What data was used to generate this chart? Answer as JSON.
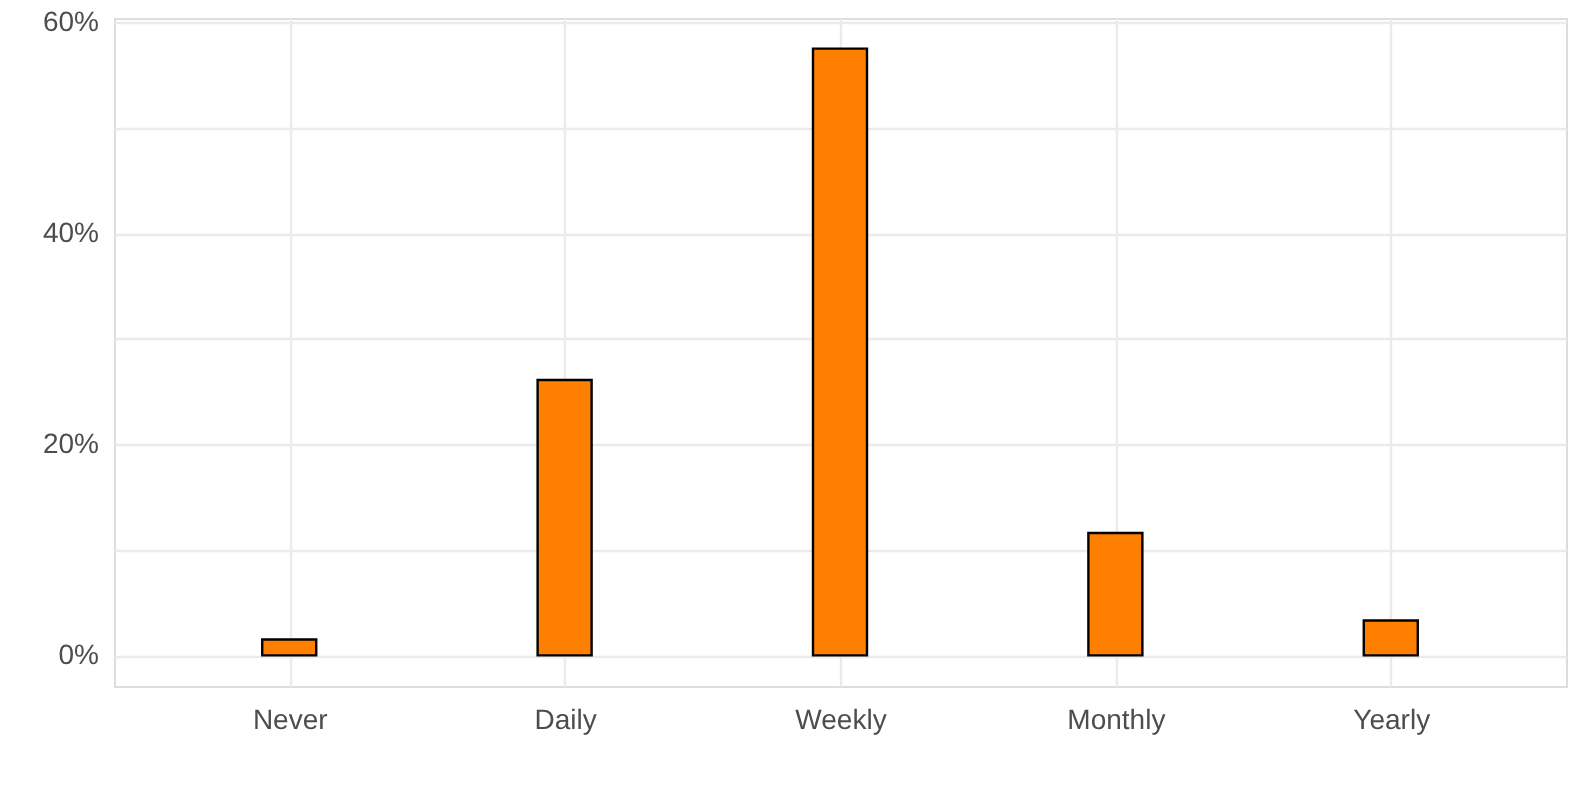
{
  "chart_data": {
    "type": "bar",
    "categories": [
      "Never",
      "Daily",
      "Weekly",
      "Monthly",
      "Yearly"
    ],
    "values": [
      1.5,
      26.1,
      57.5,
      11.6,
      3.3
    ],
    "color": "#ff7f00",
    "ylim": [
      -2.9,
      60.4
    ],
    "yticks": [
      {
        "value": 0,
        "label": "0%"
      },
      {
        "value": 10,
        "label": null
      },
      {
        "value": 20,
        "label": "20%"
      },
      {
        "value": 30,
        "label": null
      },
      {
        "value": 40,
        "label": "40%"
      },
      {
        "value": 50,
        "label": null
      },
      {
        "value": 60,
        "label": "60%"
      }
    ],
    "grid": true
  }
}
